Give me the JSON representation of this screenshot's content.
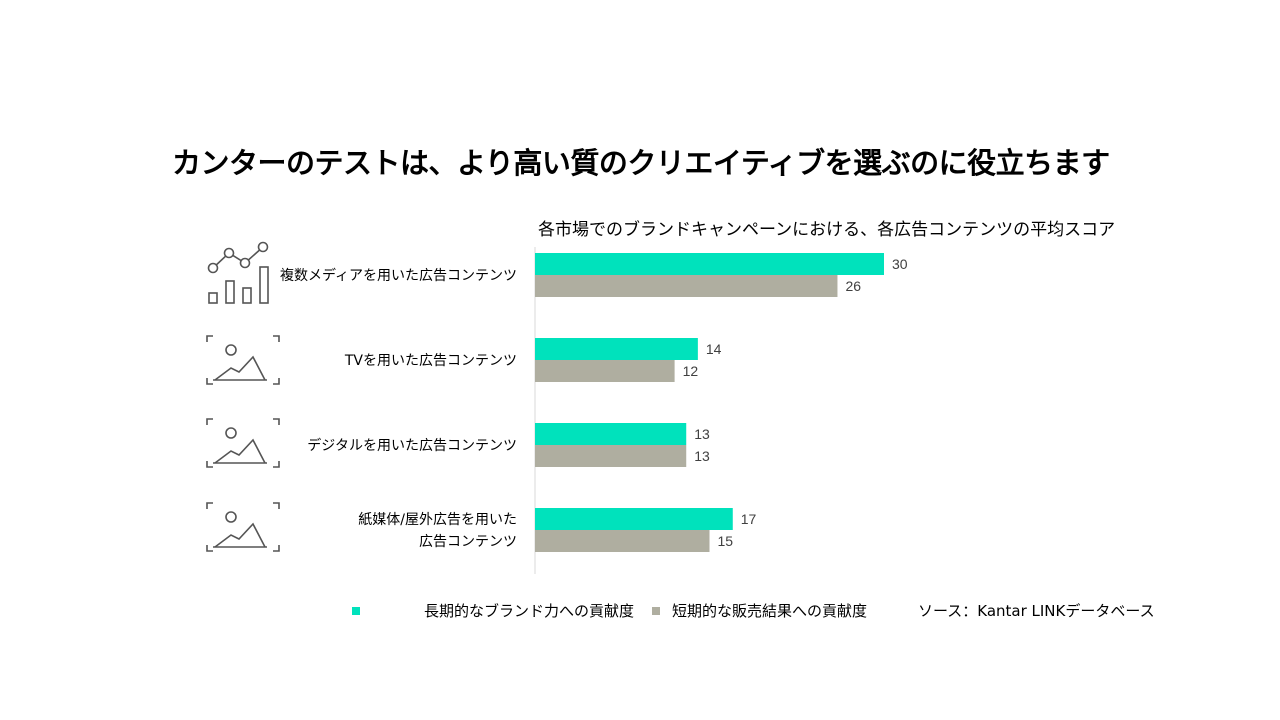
{
  "title": "カンターのテストは、より高い質のクリエイティブを選ぶのに役立ちます",
  "source": "ソース：Kantar LINKデータベース",
  "colors": {
    "long_term": "#00E2BC",
    "short_term": "#AFAEA0"
  },
  "icons": [
    "line-bar-chart-icon",
    "image-frame-icon",
    "image-frame-icon",
    "image-frame-icon"
  ],
  "chart_data": {
    "type": "bar",
    "orientation": "horizontal",
    "title": "各市場でのブランドキャンペーンにおける、各広告コンテンツの平均スコア",
    "categories": [
      "複数メディアを用いた広告コンテンツ",
      "TVを用いた広告コンテンツ",
      "デジタルを用いた広告コンテンツ",
      "紙媒体/屋外広告を用いた広告コンテンツ"
    ],
    "category_lines": [
      [
        "複数メディアを用いた広告コンテンツ"
      ],
      [
        "TVを用いた広告コンテンツ"
      ],
      [
        "デジタルを用いた広告コンテンツ"
      ],
      [
        "紙媒体/屋外広告を用いた",
        "広告コンテンツ"
      ]
    ],
    "series": [
      {
        "name": "長期的なブランド力への貢献度",
        "values": [
          30,
          14,
          13,
          17
        ]
      },
      {
        "name": "短期的な販売結果への貢献度",
        "values": [
          26,
          12,
          13,
          15
        ]
      }
    ],
    "xlim": [
      0,
      30
    ],
    "grid": false,
    "legend": "bottom"
  }
}
